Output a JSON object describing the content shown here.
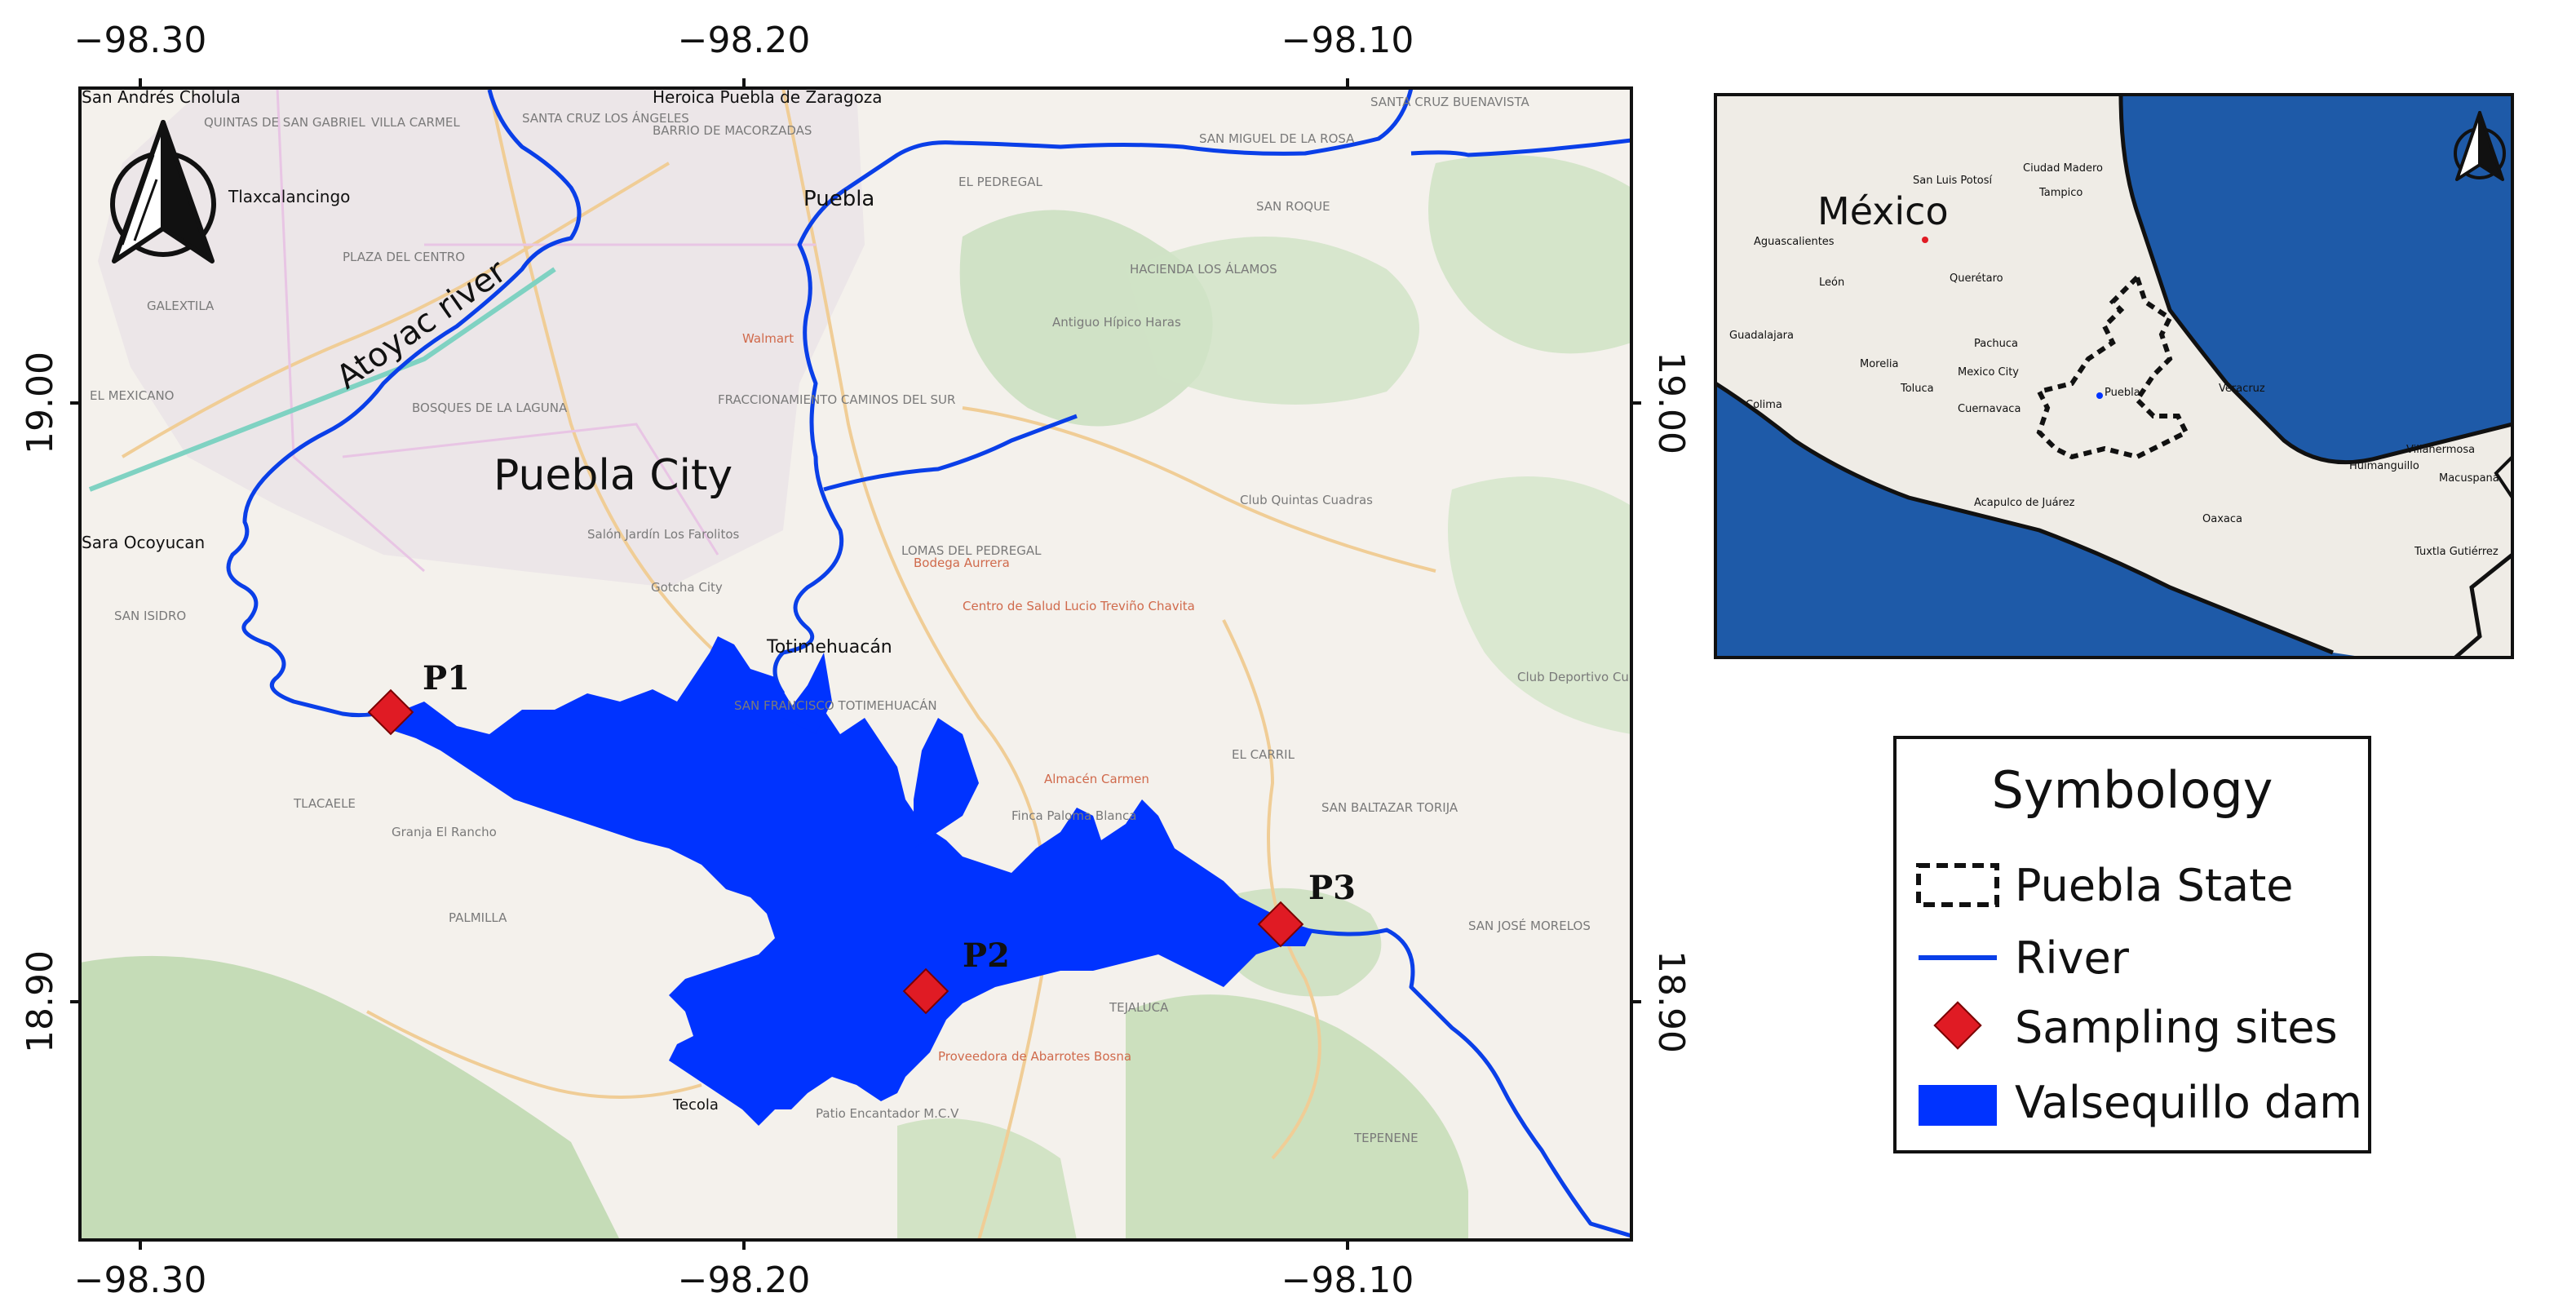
{
  "main_map": {
    "top_ticks": [
      "−98.30",
      "−98.20",
      "−98.10"
    ],
    "bottom_ticks": [
      "−98.30",
      "−98.20",
      "−98.10"
    ],
    "left_ticks": [
      "19.00",
      "18.90"
    ],
    "right_ticks": [
      "19.00",
      "18.90"
    ],
    "labels": {
      "city": "Puebla City",
      "river": "Atoyac river",
      "cholula": "San Andrés Cholula",
      "heroica": "Heroica Puebla de Zaragoza",
      "puebla": "Puebla",
      "tlaxcalancingo": "Tlaxcalancingo",
      "ocoyucan": "Sara Ocoyucan",
      "totimehuacan": "Totimehuacán",
      "tecola": "Tecola"
    },
    "small_labels": [
      "QUINTAS DE SAN GABRIEL",
      "VILLA CARMEL",
      "SANTA CRUZ LOS ÁNGELES",
      "SAN MIGUEL DE LA ROSA",
      "BARRIO DE MACORZADAS",
      "SANTA CRUZ BUENAVISTA",
      "EL PEDREGAL",
      "SAN ROQUE",
      "GALEXTILA",
      "EL MEXICANO",
      "BOSQUES DE LA LAGUNA",
      "FRACCIONAMIENTO CAMINOS DEL SUR",
      "LOMAS DEL PEDREGAL",
      "SAN ISIDRO",
      "TLACAELE",
      "PALMILLA",
      "EL CARRIL",
      "SAN BALTAZAR TORIJA",
      "TEJALUCA",
      "SAN JOSÉ MORELOS",
      "TEPENENE",
      "PLAZA DEL CENTRO",
      "HACIENDA LOS ÁLAMOS",
      "SAN FRANCISCO TOTIMEHUACÁN"
    ],
    "poi_labels": [
      "Bodega Aurrera",
      "Walmart",
      "Antiguo Hípico Haras",
      "Club Quintas Cuadras",
      "Salón Jardín Los Farolitos",
      "Granja El Rancho",
      "Finca Paloma Blanca",
      "Almacén Carmen",
      "Proveedora de Abarrotes Bosna",
      "Patio Encantador M.C.V",
      "Gotcha City",
      "Club Deportivo Cultural Quetzal",
      "Centro de Salud Lucio Treviño Chavita"
    ],
    "sites": [
      {
        "label": "P1",
        "color": "#e01b24"
      },
      {
        "label": "P2",
        "color": "#e01b24"
      },
      {
        "label": "P3",
        "color": "#e01b24"
      }
    ],
    "river_color": "#0a3fe8",
    "dam_color": "#0033ff",
    "north_arrow_icon": "north-arrow-icon"
  },
  "inset_map": {
    "country_label": "México",
    "small_labels": [
      "San Luis Potosí",
      "Ciudad Madero",
      "Tampico",
      "Querétaro",
      "Mexico City",
      "Puebla",
      "Veracruz",
      "Villahermosa",
      "Aguascalientes",
      "León",
      "Morelia",
      "Guadalajara",
      "Colima",
      "Acapulco de Juárez",
      "Oaxaca",
      "Tuxtla Gutiérrez",
      "Huimanguillo",
      "Macuspana",
      "Pachuca",
      "Cuernavaca",
      "Toluca"
    ],
    "sea_color": "#1e5aa8",
    "north_arrow_icon": "north-arrow-icon"
  },
  "legend": {
    "title": "Symbology",
    "items": [
      {
        "label": "Puebla State",
        "icon": "dashed-box-icon"
      },
      {
        "label": "River",
        "icon": "line-icon"
      },
      {
        "label": "Sampling sites",
        "icon": "red-diamond-icon"
      },
      {
        "label": "Valsequillo dam",
        "icon": "blue-rectangle-icon"
      }
    ]
  }
}
